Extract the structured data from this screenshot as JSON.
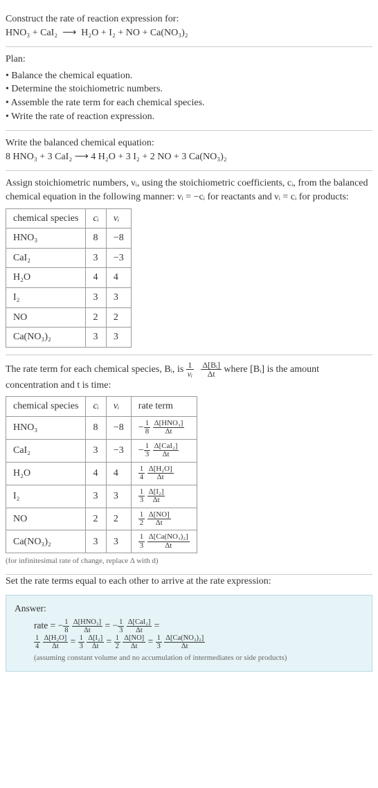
{
  "intro": {
    "line1": "Construct the rate of reaction expression for:",
    "eq_lhs": "HNO₃ + CaI₂",
    "arrow": "⟶",
    "eq_rhs": "H₂O + I₂ + NO + Ca(NO₃)₂"
  },
  "plan": {
    "heading": "Plan:",
    "items": [
      "Balance the chemical equation.",
      "Determine the stoichiometric numbers.",
      "Assemble the rate term for each chemical species.",
      "Write the rate of reaction expression."
    ]
  },
  "balanced": {
    "heading": "Write the balanced chemical equation:",
    "eq": "8 HNO₃ + 3 CaI₂  ⟶  4 H₂O + 3 I₂ + 2 NO + 3 Ca(NO₃)₂"
  },
  "stoich": {
    "text_a": "Assign stoichiometric numbers, νᵢ, using the stoichiometric coefficients, cᵢ, from the balanced chemical equation in the following manner: νᵢ = −cᵢ for reactants and νᵢ = cᵢ for products:",
    "table": {
      "headers": [
        "chemical species",
        "cᵢ",
        "νᵢ"
      ],
      "rows": [
        [
          "HNO₃",
          "8",
          "−8"
        ],
        [
          "CaI₂",
          "3",
          "−3"
        ],
        [
          "H₂O",
          "4",
          "4"
        ],
        [
          "I₂",
          "3",
          "3"
        ],
        [
          "NO",
          "2",
          "2"
        ],
        [
          "Ca(NO₃)₂",
          "3",
          "3"
        ]
      ]
    }
  },
  "rateterm": {
    "text_a": "The rate term for each chemical species, Bᵢ, is ",
    "frac_outer_num": "1",
    "frac_outer_den": "νᵢ",
    "frac_inner_num": "Δ[Bᵢ]",
    "frac_inner_den": "Δt",
    "text_b": " where [Bᵢ] is the amount concentration and t is time:",
    "table": {
      "headers": [
        "chemical species",
        "cᵢ",
        "νᵢ",
        "rate term"
      ],
      "rows": [
        {
          "sp": "HNO₃",
          "c": "8",
          "v": "−8",
          "sign": "−",
          "coef_num": "1",
          "coef_den": "8",
          "dnum": "Δ[HNO₃]",
          "dden": "Δt"
        },
        {
          "sp": "CaI₂",
          "c": "3",
          "v": "−3",
          "sign": "−",
          "coef_num": "1",
          "coef_den": "3",
          "dnum": "Δ[CaI₂]",
          "dden": "Δt"
        },
        {
          "sp": "H₂O",
          "c": "4",
          "v": "4",
          "sign": "",
          "coef_num": "1",
          "coef_den": "4",
          "dnum": "Δ[H₂O]",
          "dden": "Δt"
        },
        {
          "sp": "I₂",
          "c": "3",
          "v": "3",
          "sign": "",
          "coef_num": "1",
          "coef_den": "3",
          "dnum": "Δ[I₂]",
          "dden": "Δt"
        },
        {
          "sp": "NO",
          "c": "2",
          "v": "2",
          "sign": "",
          "coef_num": "1",
          "coef_den": "2",
          "dnum": "Δ[NO]",
          "dden": "Δt"
        },
        {
          "sp": "Ca(NO₃)₂",
          "c": "3",
          "v": "3",
          "sign": "",
          "coef_num": "1",
          "coef_den": "3",
          "dnum": "Δ[Ca(NO₃)₂]",
          "dden": "Δt"
        }
      ]
    },
    "note": "(for infinitesimal rate of change, replace Δ with d)"
  },
  "final": {
    "heading": "Set the rate terms equal to each other to arrive at the rate expression:",
    "answer_label": "Answer:",
    "rate_prefix": "rate = ",
    "terms": [
      {
        "sign": "−",
        "coef_num": "1",
        "coef_den": "8",
        "dnum": "Δ[HNO₃]",
        "dden": "Δt"
      },
      {
        "sign": "−",
        "coef_num": "1",
        "coef_den": "3",
        "dnum": "Δ[CaI₂]",
        "dden": "Δt"
      },
      {
        "sign": "",
        "coef_num": "1",
        "coef_den": "4",
        "dnum": "Δ[H₂O]",
        "dden": "Δt"
      },
      {
        "sign": "",
        "coef_num": "1",
        "coef_den": "3",
        "dnum": "Δ[I₂]",
        "dden": "Δt"
      },
      {
        "sign": "",
        "coef_num": "1",
        "coef_den": "2",
        "dnum": "Δ[NO]",
        "dden": "Δt"
      },
      {
        "sign": "",
        "coef_num": "1",
        "coef_den": "3",
        "dnum": "Δ[Ca(NO₃)₂]",
        "dden": "Δt"
      }
    ],
    "break_after_index": 1,
    "note": "(assuming constant volume and no accumulation of intermediates or side products)"
  },
  "style": {
    "body_bg": "#ffffff",
    "text_color": "#333333",
    "border_color": "#cccccc",
    "table_border": "#999999",
    "answer_bg": "#e6f3f7",
    "answer_border": "#b8d8e0",
    "note_color": "#666666",
    "base_fontsize": 14,
    "note_fontsize": 11
  }
}
